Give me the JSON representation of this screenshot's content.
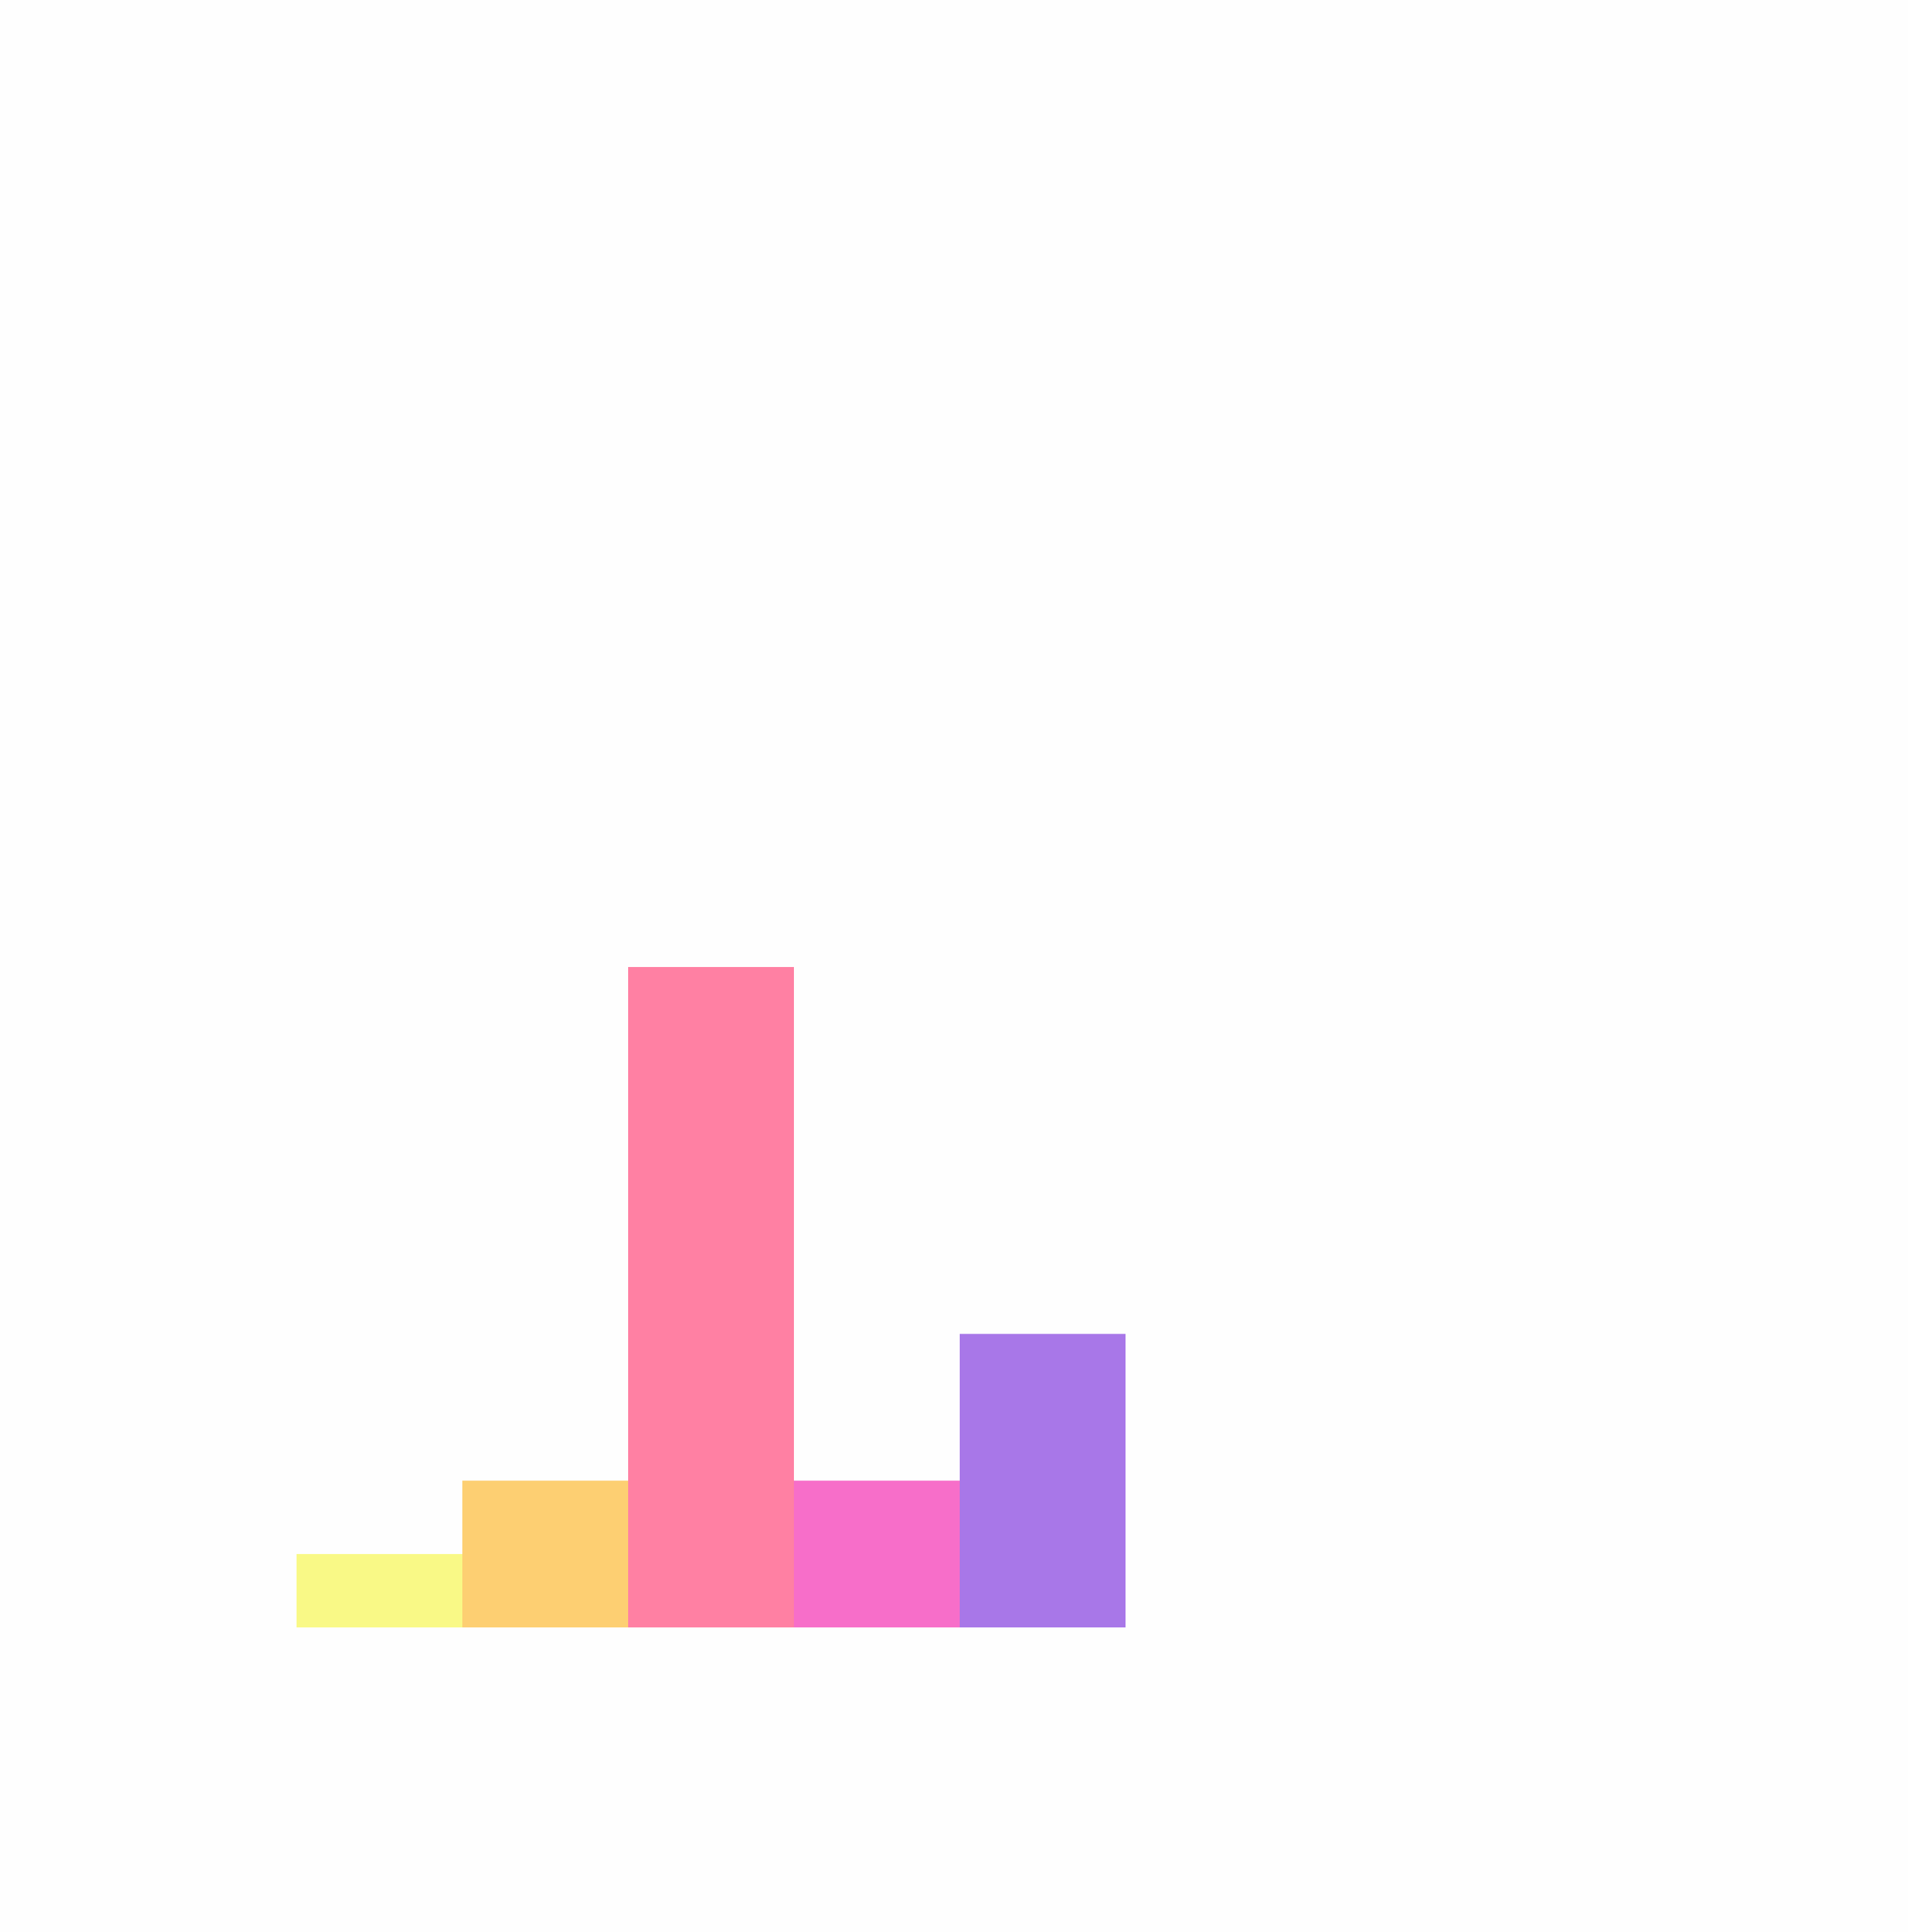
{
  "chart_data": {
    "type": "bar",
    "categories": [
      "",
      "",
      "",
      "",
      ""
    ],
    "values": [
      1.0,
      2.0,
      9.0,
      2.0,
      4.0
    ],
    "colors": [
      "#f9f986",
      "#fdcf72",
      "#ff80a3",
      "#f76ec9",
      "#a877e8"
    ],
    "ylim": [
      0,
      9.0
    ],
    "grid": false,
    "legend": "none",
    "axes_visible": false
  }
}
